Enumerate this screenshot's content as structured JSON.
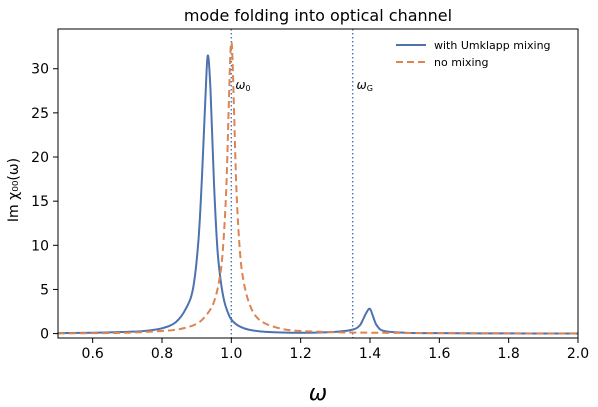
{
  "chart_data": {
    "type": "line",
    "title": "mode folding into optical channel",
    "xlabel": "ω",
    "ylabel": "Im χ₀₀(ω)",
    "xlim": [
      0.5,
      2.0
    ],
    "ylim": [
      -0.5,
      34.5
    ],
    "xticks": [
      0.6,
      0.8,
      1.0,
      1.2,
      1.4,
      1.6,
      1.8,
      2.0
    ],
    "xtick_labels": [
      "0.6",
      "0.8",
      "1.0",
      "1.2",
      "1.4",
      "1.6",
      "1.8",
      "2.0"
    ],
    "yticks": [
      0,
      5,
      10,
      15,
      20,
      25,
      30
    ],
    "ytick_labels": [
      "0",
      "5",
      "10",
      "15",
      "20",
      "25",
      "30"
    ],
    "grid": false,
    "legend_position": "top-right",
    "series": [
      {
        "name": "with Umklapp mixing",
        "style": "solid",
        "color": "#4c72b0",
        "x": [
          0.5,
          0.6,
          0.7,
          0.75,
          0.8,
          0.84,
          0.87,
          0.89,
          0.905,
          0.915,
          0.925,
          0.932,
          0.94,
          0.95,
          0.96,
          0.97,
          0.98,
          0.99,
          1.0,
          1.02,
          1.05,
          1.1,
          1.2,
          1.3,
          1.35,
          1.37,
          1.38,
          1.39,
          1.4,
          1.41,
          1.42,
          1.44,
          1.5,
          1.6,
          1.8,
          2.0
        ],
        "y": [
          0.05,
          0.1,
          0.2,
          0.3,
          0.6,
          1.3,
          2.9,
          5.2,
          10.5,
          17.5,
          26.5,
          31.5,
          27.5,
          17.0,
          9.5,
          5.8,
          3.6,
          2.4,
          1.6,
          0.9,
          0.45,
          0.2,
          0.1,
          0.2,
          0.45,
          0.9,
          1.6,
          2.4,
          2.8,
          1.8,
          0.9,
          0.3,
          0.1,
          0.05,
          0.02,
          0.01
        ]
      },
      {
        "name": "no mixing",
        "style": "dashed",
        "color": "#dd8452",
        "x": [
          0.5,
          0.6,
          0.7,
          0.8,
          0.85,
          0.9,
          0.93,
          0.95,
          0.965,
          0.975,
          0.985,
          0.992,
          0.997,
          1.0,
          1.003,
          1.008,
          1.015,
          1.025,
          1.035,
          1.05,
          1.07,
          1.1,
          1.15,
          1.2,
          1.3,
          1.4,
          1.6,
          1.8,
          2.0
        ],
        "y": [
          0.02,
          0.05,
          0.1,
          0.3,
          0.5,
          1.1,
          2.2,
          3.6,
          6.0,
          9.2,
          16.0,
          25.0,
          31.5,
          33.0,
          31.5,
          25.0,
          16.0,
          9.2,
          6.0,
          3.6,
          2.0,
          1.1,
          0.5,
          0.3,
          0.15,
          0.1,
          0.05,
          0.03,
          0.02
        ]
      }
    ],
    "vlines": [
      {
        "x": 1.0,
        "label_main": "ω",
        "label_sub": "0",
        "color": "#4c72b0",
        "style": "dotted"
      },
      {
        "x": 1.35,
        "label_main": "ω",
        "label_sub": "G",
        "color": "#4c72b0",
        "style": "dotted"
      }
    ]
  }
}
